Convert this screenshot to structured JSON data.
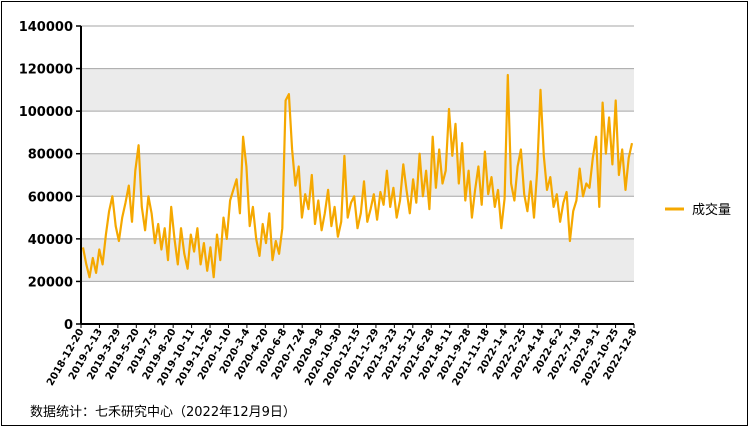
{
  "source_note": "数据统计：七禾研究中心（2022年12月9日）",
  "chart_data": {
    "type": "line",
    "ylim": [
      0,
      140000
    ],
    "yticks": [
      0,
      20000,
      40000,
      60000,
      80000,
      100000,
      120000,
      140000
    ],
    "x_tick_labels": [
      "2018-12-20",
      "2019-2-13",
      "2019-3-29",
      "2019-5-20",
      "2019-7-5",
      "2019-8-20",
      "2019-10-11",
      "2019-11-26",
      "2020-1-10",
      "2020-3-4",
      "2020-4-20",
      "2020-6-8",
      "2020-7-24",
      "2020-9-8",
      "2020-10-30",
      "2020-12-15",
      "2021-1-29",
      "2021-3-23",
      "2021-5-12",
      "2021-6-28",
      "2021-8-11",
      "2021-9-28",
      "2021-11-18",
      "2022-1-4",
      "2022-2-25",
      "2022-4-14",
      "2022-6-2",
      "2022-7-19",
      "2022-9-1",
      "2022-10-25",
      "2022-12-8"
    ],
    "grid": true,
    "legend_position": "right",
    "colors": {
      "series": "#F5A800",
      "band": "#EBEBEB",
      "gridline": "#A6A6A6"
    },
    "series": [
      {
        "name": "成交量",
        "values": [
          36000,
          28000,
          22000,
          31000,
          24000,
          35000,
          28000,
          42000,
          53000,
          60000,
          46000,
          39000,
          50000,
          57000,
          65000,
          48000,
          72000,
          84000,
          55000,
          44000,
          60000,
          52000,
          38000,
          47000,
          35000,
          45000,
          30000,
          55000,
          40000,
          28000,
          45000,
          33000,
          26000,
          42000,
          34000,
          45000,
          28000,
          38000,
          25000,
          36000,
          22000,
          42000,
          30000,
          50000,
          40000,
          58000,
          63000,
          68000,
          52000,
          88000,
          74000,
          46000,
          55000,
          40000,
          32000,
          47000,
          38000,
          52000,
          30000,
          39000,
          33000,
          45000,
          105000,
          108000,
          82000,
          65000,
          74000,
          50000,
          61000,
          54000,
          70000,
          47000,
          58000,
          44000,
          52000,
          63000,
          46000,
          55000,
          41000,
          48000,
          79000,
          50000,
          57000,
          60000,
          45000,
          52000,
          67000,
          48000,
          54000,
          61000,
          49000,
          62000,
          56000,
          72000,
          55000,
          64000,
          50000,
          58000,
          75000,
          63000,
          52000,
          68000,
          57000,
          80000,
          60000,
          72000,
          54000,
          88000,
          64000,
          82000,
          66000,
          72000,
          101000,
          79000,
          94000,
          66000,
          85000,
          58000,
          72000,
          50000,
          63000,
          74000,
          56000,
          81000,
          61000,
          69000,
          55000,
          63000,
          45000,
          59000,
          117000,
          66000,
          58000,
          74000,
          82000,
          61000,
          53000,
          67000,
          50000,
          72000,
          110000,
          79000,
          63000,
          69000,
          55000,
          61000,
          48000,
          57000,
          62000,
          39000,
          53000,
          58000,
          73000,
          60000,
          66000,
          64000,
          78000,
          88000,
          55000,
          104000,
          80000,
          97000,
          75000,
          105000,
          70000,
          82000,
          63000,
          78000,
          85000
        ]
      }
    ]
  }
}
